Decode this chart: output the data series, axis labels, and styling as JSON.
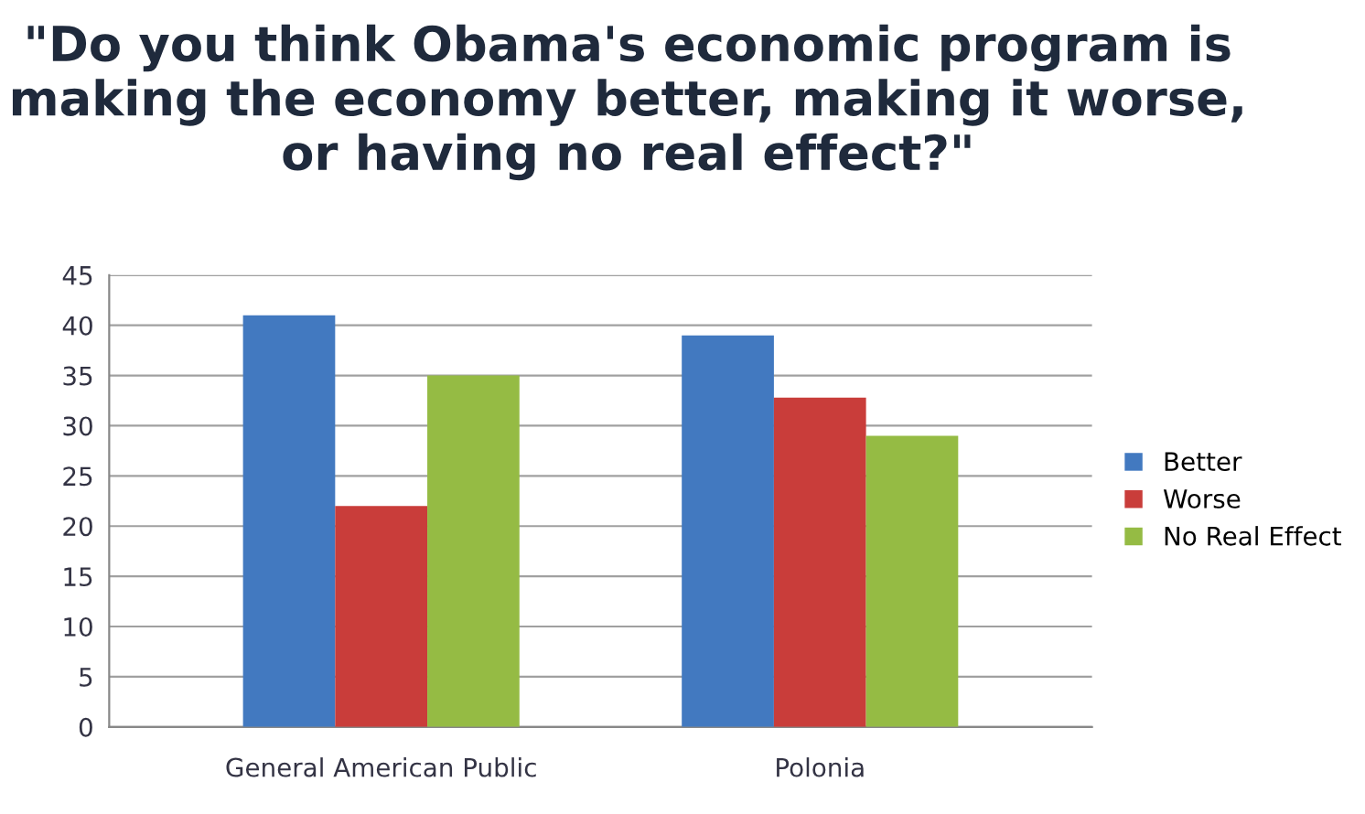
{
  "chart_data": {
    "type": "bar",
    "title": "\"Do you think Obama's economic program is making the economy better, making it worse, or having no real effect?\"",
    "categories": [
      "General American Public",
      "Polonia"
    ],
    "series": [
      {
        "name": "Better",
        "color": "#4279c0",
        "values": [
          41,
          39
        ]
      },
      {
        "name": "Worse",
        "color": "#c93d3a",
        "values": [
          22,
          32.8
        ]
      },
      {
        "name": "No Real Effect",
        "color": "#95bb44",
        "values": [
          35,
          29
        ]
      }
    ],
    "ylim": [
      0,
      45
    ],
    "yticks": [
      0,
      5,
      10,
      15,
      20,
      25,
      30,
      35,
      40,
      45
    ],
    "grid": "y",
    "legend": "right"
  }
}
